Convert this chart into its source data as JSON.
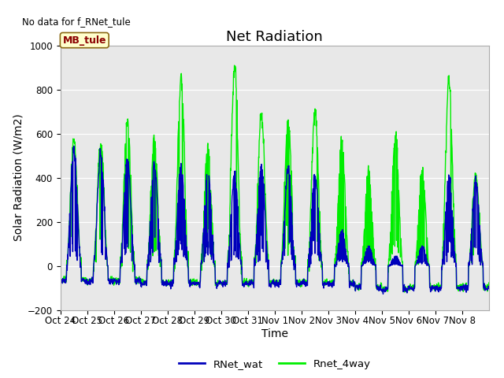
{
  "title": "Net Radiation",
  "xlabel": "Time",
  "ylabel": "Solar Radiation (W/m2)",
  "top_left_text": "No data for f_RNet_tule",
  "legend_label1": "RNet_wat",
  "legend_label2": "Rnet_4way",
  "box_label": "MB_tule",
  "ylim": [
    -200,
    1000
  ],
  "yticks": [
    -200,
    0,
    200,
    400,
    600,
    800,
    1000
  ],
  "xtick_labels": [
    "Oct 24",
    "Oct 25",
    "Oct 26",
    "Oct 27",
    "Oct 28",
    "Oct 29",
    "Oct 30",
    "Oct 31",
    "Nov 1",
    "Nov 2",
    "Nov 3",
    "Nov 4",
    "Nov 5",
    "Nov 6",
    "Nov 7",
    "Nov 8"
  ],
  "bg_color": "#e8e8e8",
  "fig_bg_color": "#ffffff",
  "line1_color": "#0000bb",
  "line2_color": "#00ee00",
  "line_width": 1.0,
  "title_fontsize": 13,
  "label_fontsize": 10,
  "tick_fontsize": 8.5
}
